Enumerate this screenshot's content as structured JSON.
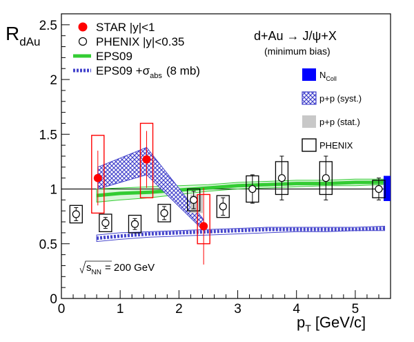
{
  "chart_data": {
    "type": "scatter",
    "xlabel": "p",
    "xlabel_sub": "T",
    "xlabel_unit": "[GeV/c]",
    "ylabel": "R",
    "ylabel_sub": "dAu",
    "xlim": [
      0,
      5.6
    ],
    "ylim": [
      0,
      2.6
    ],
    "x_ticks": [
      "0",
      "1",
      "2",
      "3",
      "4",
      "5"
    ],
    "y_ticks": [
      "0",
      "0.5",
      "1",
      "1.5",
      "2",
      "2.5"
    ],
    "reaction": "d+Au → J/ψ+X",
    "condition": "(minimum bias)",
    "energy_label": "√s",
    "energy_sub": "NN",
    "energy_value": "= 200 GeV",
    "series": [
      {
        "name": "STAR |y|<1",
        "marker": "filled-circle",
        "color": "#ff0000",
        "x": [
          0.62,
          1.45,
          2.42
        ],
        "y": [
          1.1,
          1.27,
          0.66
        ],
        "stat_err": [
          0.25,
          0.26,
          0.35
        ],
        "syst_lo": [
          0.78,
          0.92,
          0.5
        ],
        "syst_hi": [
          1.49,
          1.6,
          0.95
        ]
      },
      {
        "name": "PHENIX |y|<0.35",
        "marker": "open-circle",
        "color": "#000000",
        "x": [
          0.25,
          0.75,
          1.25,
          1.75,
          2.25,
          2.75,
          3.25,
          3.75,
          4.5,
          5.4
        ],
        "y": [
          0.77,
          0.69,
          0.68,
          0.78,
          0.9,
          0.84,
          1.0,
          1.1,
          1.1,
          1.0
        ],
        "stat_err": [
          0.06,
          0.05,
          0.05,
          0.06,
          0.08,
          0.08,
          0.13,
          0.2,
          0.2,
          0.1
        ],
        "syst_err": [
          0.08,
          0.08,
          0.08,
          0.08,
          0.1,
          0.1,
          0.12,
          0.15,
          0.15,
          0.08
        ]
      },
      {
        "name": "EPS09",
        "type": "band",
        "color": "#33cc33",
        "x": [
          0.6,
          1.0,
          1.5,
          2.0,
          2.5,
          3.0,
          3.5,
          4.0,
          4.5,
          5.0,
          5.5
        ],
        "y": [
          0.94,
          0.96,
          0.97,
          0.99,
          1.01,
          1.03,
          1.04,
          1.05,
          1.05,
          1.06,
          1.06
        ],
        "lo": [
          0.88,
          0.9,
          0.92,
          0.95,
          0.98,
          1.0,
          1.01,
          1.02,
          1.03,
          1.03,
          1.04
        ],
        "hi": [
          1.0,
          1.01,
          1.02,
          1.03,
          1.04,
          1.06,
          1.07,
          1.08,
          1.08,
          1.09,
          1.09
        ]
      },
      {
        "name": "EPS09 +σ",
        "name_sub": "abs",
        "name_suffix": "(8 mb)",
        "type": "band",
        "color": "#4444cc",
        "x": [
          0.6,
          1.0,
          1.5,
          2.0,
          2.5,
          3.0,
          3.5,
          4.0,
          4.5,
          5.0,
          5.5
        ],
        "y": [
          0.55,
          0.57,
          0.59,
          0.6,
          0.61,
          0.62,
          0.63,
          0.63,
          0.63,
          0.63,
          0.64
        ],
        "lo": [
          0.52,
          0.54,
          0.56,
          0.57,
          0.58,
          0.59,
          0.6,
          0.61,
          0.61,
          0.62,
          0.62
        ],
        "hi": [
          0.58,
          0.6,
          0.61,
          0.62,
          0.63,
          0.64,
          0.65,
          0.65,
          0.65,
          0.65,
          0.66
        ]
      }
    ],
    "pp_syst_band": {
      "x": [
        0.62,
        1.45,
        2.42
      ],
      "lo": [
        1.0,
        1.13,
        0.62
      ],
      "hi": [
        1.2,
        1.38,
        0.72
      ]
    },
    "pp_stat_boxes": [
      {
        "x": 2.3,
        "lo": 0.78,
        "hi": 0.95
      }
    ],
    "ncoll_box": {
      "lo": 0.89,
      "hi": 1.12
    },
    "box_legend": [
      {
        "label": "N",
        "sub": "Coll",
        "style": "ncoll",
        "color": "#0000ff"
      },
      {
        "label": "p+p (syst.)",
        "style": "hatch",
        "color": "#4444cc"
      },
      {
        "label": "p+p (stat.)",
        "style": "gray",
        "color": "#c8c8c8"
      },
      {
        "label": "PHENIX",
        "style": "open",
        "color": "#000000"
      }
    ],
    "reference_line": 1
  }
}
